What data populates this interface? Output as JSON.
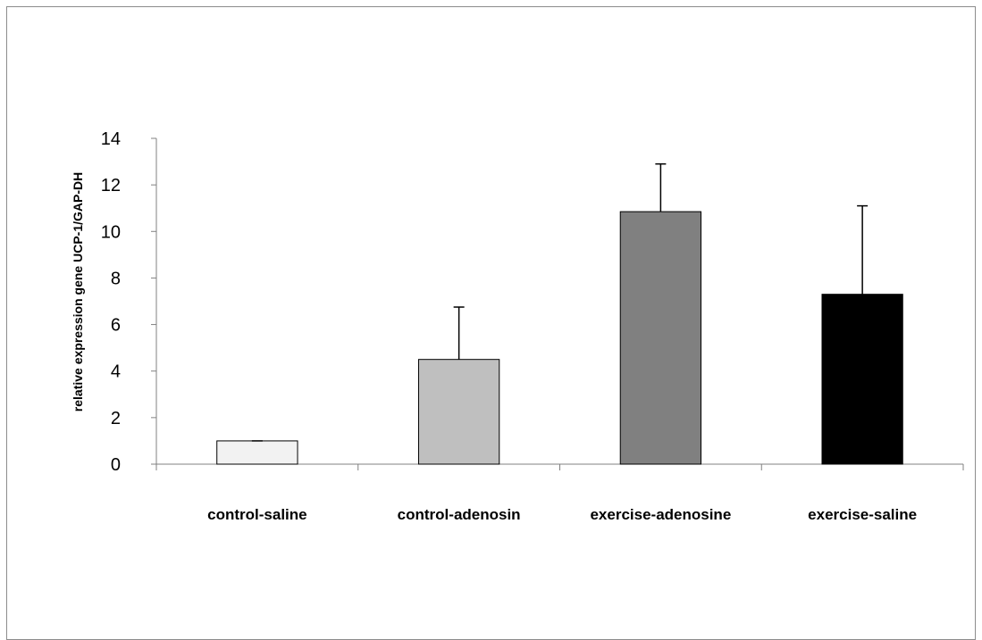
{
  "chart_data": {
    "type": "bar",
    "title": "",
    "xlabel": "",
    "ylabel": "relative expression gene UCP-1/GAP-DH",
    "ylim": [
      0,
      14
    ],
    "yticks": [
      0,
      2,
      4,
      6,
      8,
      10,
      12,
      14
    ],
    "grid": false,
    "legend": "none",
    "categories": [
      "control-saline",
      "control-adenosin",
      "exercise-adenosine",
      "exercise-saline"
    ],
    "values": [
      1.0,
      4.5,
      10.85,
      7.3
    ],
    "error_bars": [
      0.0,
      2.25,
      2.05,
      3.8
    ],
    "bar_colors": [
      "#f2f2f2",
      "#bfbfbf",
      "#808080",
      "#000000"
    ]
  }
}
